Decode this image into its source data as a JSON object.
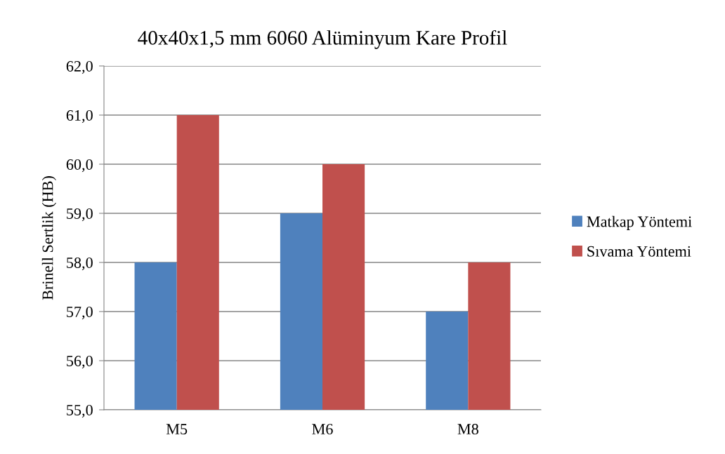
{
  "chart_data": {
    "type": "bar",
    "title": "40x40x1,5 mm 6060 Alüminyum Kare Profil",
    "ylabel": "Brinell Sertlik (HB)",
    "categories": [
      "M5",
      "M6",
      "M8"
    ],
    "series": [
      {
        "name": "Matkap Yöntemi",
        "color": "#4f81bd",
        "values": [
          58,
          59,
          57
        ]
      },
      {
        "name": "Sıvama Yöntemi",
        "color": "#c0504d",
        "values": [
          61,
          60,
          58
        ]
      }
    ],
    "ylim": [
      55,
      62
    ],
    "yticks": [
      {
        "value": 55,
        "label": "55,0"
      },
      {
        "value": 56,
        "label": "56,0"
      },
      {
        "value": 57,
        "label": "57,0"
      },
      {
        "value": 58,
        "label": "58,0"
      },
      {
        "value": 59,
        "label": "59,0"
      },
      {
        "value": 60,
        "label": "60,0"
      },
      {
        "value": 61,
        "label": "61,0"
      },
      {
        "value": 62,
        "label": "62,0"
      }
    ],
    "grid": "y",
    "legend": "right"
  }
}
